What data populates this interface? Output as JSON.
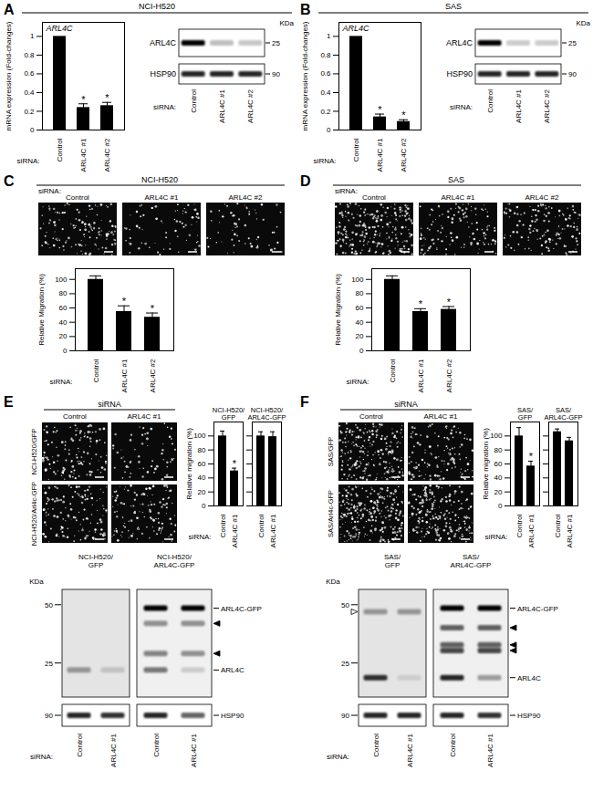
{
  "chart_data": [
    {
      "type": "bar",
      "title": "ARL4C",
      "categories": [
        "Control",
        "ARL4C #1",
        "ARL4C #2"
      ],
      "values": [
        1,
        0.24,
        0.26
      ],
      "errors": [
        0,
        0.04,
        0.035
      ],
      "annotations": [
        null,
        "*",
        "*"
      ],
      "y_label": "mRNA expression (Fold-changes)",
      "x_label": "siRNA:",
      "ylim": [
        0,
        1.15
      ],
      "yticks": [
        0,
        0.2,
        0.4,
        0.6,
        0.8,
        1
      ],
      "color": "#000000"
    },
    {
      "type": "bar",
      "title": "ARL4C",
      "categories": [
        "Control",
        "ARL4C #1",
        "ARL4C #2"
      ],
      "values": [
        1,
        0.14,
        0.09
      ],
      "errors": [
        0,
        0.03,
        0.02
      ],
      "annotations": [
        null,
        "*",
        "*"
      ],
      "y_label": "mRNA expression (Fold-changes)",
      "x_label": "siRNA:",
      "ylim": [
        0,
        1.15
      ],
      "yticks": [
        0,
        0.2,
        0.4,
        0.6,
        0.8,
        1
      ],
      "color": "#000000"
    },
    {
      "type": "bar",
      "categories": [
        "Control",
        "ARL4C #1",
        "ARL4C #2"
      ],
      "values": [
        100,
        55,
        47
      ],
      "errors": [
        5,
        8,
        6
      ],
      "annotations": [
        null,
        "*",
        "*"
      ],
      "y_label": "Relative Migration (%)",
      "x_label": "siRNA:",
      "ylim": [
        0,
        115
      ],
      "yticks": [
        0,
        20,
        40,
        60,
        80,
        100
      ],
      "color": "#000000"
    },
    {
      "type": "bar",
      "categories": [
        "Control",
        "ARL4C #1",
        "ARL4C #2"
      ],
      "values": [
        100,
        55,
        58
      ],
      "errors": [
        5,
        4,
        4
      ],
      "annotations": [
        null,
        "*",
        "*"
      ],
      "y_label": "Relative Migration (%)",
      "x_label": "siRNA:",
      "ylim": [
        0,
        115
      ],
      "yticks": [
        0,
        20,
        40,
        60,
        80,
        100
      ],
      "color": "#000000"
    },
    {
      "type": "bar",
      "title": "NCI-H520/GFP",
      "categories": [
        "Control",
        "ARL4C #1"
      ],
      "values": [
        100,
        50
      ],
      "errors": [
        7,
        4
      ],
      "annotations": [
        null,
        "*"
      ],
      "y_label": "Relative migration (%)",
      "x_label": "siRNA:",
      "ylim": [
        0,
        120
      ],
      "yticks": [
        0,
        20,
        40,
        60,
        80,
        100
      ],
      "color": "#000000"
    },
    {
      "type": "bar",
      "title": "NCI-H520/ARL4C-GFP",
      "categories": [
        "Control",
        "ARL4C #1"
      ],
      "values": [
        100,
        99
      ],
      "errors": [
        6,
        7
      ],
      "ylim": [
        0,
        120
      ],
      "yticks": [
        0,
        20,
        40,
        60,
        80,
        100
      ],
      "tick_labels": "x",
      "color": "#000000"
    },
    {
      "type": "bar",
      "title": "SAS/GFP",
      "categories": [
        "Control",
        "ARL4C #1"
      ],
      "values": [
        100,
        57
      ],
      "errors": [
        12,
        7
      ],
      "annotations": [
        null,
        "*"
      ],
      "y_label": "Relative migration (%)",
      "x_label": "siRNA:",
      "ylim": [
        0,
        120
      ],
      "yticks": [
        0,
        20,
        40,
        60,
        80,
        100
      ],
      "color": "#000000"
    },
    {
      "type": "bar",
      "title": "SAS/ARL4C-GFP",
      "categories": [
        "Control",
        "ARL4C #1"
      ],
      "values": [
        106,
        93
      ],
      "errors": [
        4,
        5
      ],
      "ylim": [
        0,
        120
      ],
      "yticks": [
        0,
        20,
        40,
        60,
        80,
        100
      ],
      "tick_labels": "x",
      "color": "#000000"
    }
  ],
  "panels": [
    {
      "letter": "A",
      "header": "NCI-H520",
      "blot": {
        "unit": "KDa",
        "rows": [
          {
            "label": "ARL4C",
            "marker": 25,
            "intensity": [
              1,
              0.25,
              0.22
            ]
          },
          {
            "label": "HSP90",
            "marker": 90,
            "intensity": [
              0.85,
              0.85,
              0.85
            ]
          }
        ],
        "lane_label": "siRNA:",
        "lanes": [
          "Control",
          "ARL4C #1",
          "ARL4C #2"
        ]
      }
    },
    {
      "letter": "B",
      "header": "SAS",
      "blot": {
        "unit": "KDa",
        "rows": [
          {
            "label": "ARL4C",
            "marker": 25,
            "intensity": [
              1,
              0.2,
              0.2
            ]
          },
          {
            "label": "HSP90",
            "marker": 90,
            "intensity": [
              0.85,
              0.85,
              0.85
            ]
          }
        ],
        "lane_label": "siRNA:",
        "lanes": [
          "Control",
          "ARL4C #1",
          "ARL4C #2"
        ]
      }
    },
    {
      "letter": "C",
      "header": "NCI-H520",
      "images": {
        "row_label": "siRNA:",
        "columns": [
          "Control",
          "ARL4C #1",
          "ARL4C #2"
        ]
      }
    },
    {
      "letter": "D",
      "header": "SAS",
      "images": {
        "row_label": "siRNA:",
        "columns": [
          "Control",
          "ARL4C #1",
          "ARL4C #2"
        ]
      }
    },
    {
      "letter": "E",
      "images": {
        "header": "siRNA",
        "columns": [
          "Control",
          "ARL4C #1"
        ],
        "rows": [
          "NCI-H520/GFP",
          "NCI-H520/Arl4c-GFP"
        ]
      },
      "blot": {
        "unit": "KDa",
        "markers": [
          50,
          25
        ],
        "groups": [
          {
            "label": "NCI-H520/GFP",
            "bands": [
              {
                "kda": 23,
                "intensity": [
                  0.35,
                  0.15
                ]
              }
            ]
          },
          {
            "label": "NCI-H520/ARL4C-GFP",
            "bands": [
              {
                "kda": 48,
                "intensity": [
                  1,
                  1
                ]
              },
              {
                "kda": 40,
                "intensity": [
                  0.4,
                  0.4
                ]
              },
              {
                "kda": 28,
                "intensity": [
                  0.45,
                  0.4
                ]
              },
              {
                "kda": 23,
                "intensity": [
                  0.5,
                  0.15
                ]
              }
            ]
          }
        ],
        "labels": [
          {
            "kda": 48,
            "text": "ARL4C-GFP"
          },
          {
            "kda": 23,
            "text": "ARL4C"
          }
        ],
        "arrowheads": [
          {
            "kda": 40,
            "side": "right",
            "fill": "filled"
          },
          {
            "kda": 28,
            "side": "right",
            "fill": "filled"
          }
        ],
        "loading_control": {
          "label": "HSP90",
          "marker": 90,
          "intensity": [
            [
              0.85,
              0.8
            ],
            [
              0.85,
              0.6
            ]
          ]
        },
        "lane_label": "siRNA:",
        "lanes": [
          "Control",
          "ARL4C #1"
        ]
      }
    },
    {
      "letter": "F",
      "images": {
        "header": "siRNA",
        "columns": [
          "Control",
          "ARL4C #1"
        ],
        "rows": [
          "SAS/GFP",
          "SAS/Arl4c-GFP"
        ]
      },
      "blot": {
        "unit": "KDa",
        "markers": [
          50,
          25
        ],
        "groups": [
          {
            "label": "SAS/GFP",
            "bands": [
              {
                "kda": 46,
                "intensity": [
                  0.35,
                  0.35
                ]
              },
              {
                "kda": 21,
                "intensity": [
                  0.8,
                  0.1
                ]
              }
            ]
          },
          {
            "label": "SAS/ARL4C-GFP",
            "bands": [
              {
                "kda": 48,
                "intensity": [
                  1,
                  1
                ]
              },
              {
                "kda": 38,
                "intensity": [
                  0.6,
                  0.6
                ]
              },
              {
                "kda": 31,
                "intensity": [
                  0.6,
                  0.6
                ]
              },
              {
                "kda": 29,
                "intensity": [
                  0.7,
                  0.7
                ]
              },
              {
                "kda": 21,
                "intensity": [
                  0.85,
                  0.35
                ]
              }
            ]
          }
        ],
        "labels": [
          {
            "kda": 48,
            "text": "ARL4C-GFP"
          },
          {
            "kda": 21,
            "text": "ARL4C"
          }
        ],
        "arrowheads": [
          {
            "kda": 46,
            "side": "left",
            "fill": "open"
          },
          {
            "kda": 38,
            "side": "right",
            "fill": "filled"
          },
          {
            "kda": 31,
            "side": "right",
            "fill": "filled"
          },
          {
            "kda": 29,
            "side": "right",
            "fill": "filled"
          }
        ],
        "loading_control": {
          "label": "HSP90",
          "marker": 90,
          "intensity": [
            [
              0.85,
              0.85
            ],
            [
              0.85,
              0.8
            ]
          ]
        },
        "lane_label": "siRNA:",
        "lanes": [
          "Control",
          "ARL4C #1"
        ]
      }
    }
  ]
}
